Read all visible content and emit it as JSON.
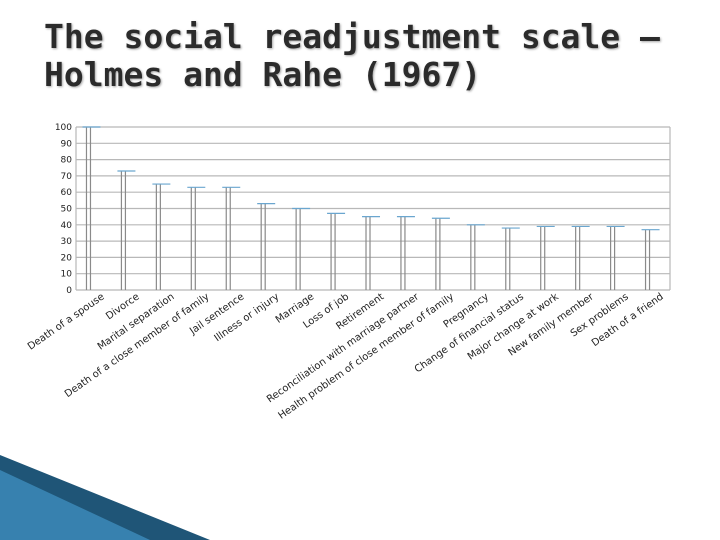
{
  "title": {
    "line1": "The social readjustment scale –",
    "line2": "Holmes and Rahe (1967)"
  },
  "colors": {
    "grid": "#b8b8b8",
    "bar": "#8a8a8a",
    "bar_top": "#6aa6cf",
    "corner_dark": "#1f5577",
    "corner_light": "#3c8ab8"
  },
  "chart_data": {
    "type": "bar",
    "title": "",
    "xlabel": "",
    "ylabel": "",
    "ylim": [
      0,
      100
    ],
    "yticks": [
      0,
      10,
      20,
      30,
      40,
      50,
      60,
      70,
      80,
      90,
      100
    ],
    "grid": true,
    "categories": [
      "Death of a spouse",
      "Divorce",
      "Marital separation",
      "Death of a close member of family",
      "Jail sentence",
      "Illness or injury",
      "Marriage",
      "Loss of job",
      "Retirement",
      "Reconciliation with marriage partner",
      "Health problem of close member of family",
      "Pregnancy",
      "Change of financial status",
      "Major change at work",
      "New family member",
      "Sex problems",
      "Death of a friend"
    ],
    "series": [
      {
        "values": [
          100,
          73,
          65,
          63,
          63,
          53,
          50,
          47,
          45,
          45,
          44,
          40,
          38,
          39,
          39,
          39,
          37
        ]
      }
    ]
  }
}
